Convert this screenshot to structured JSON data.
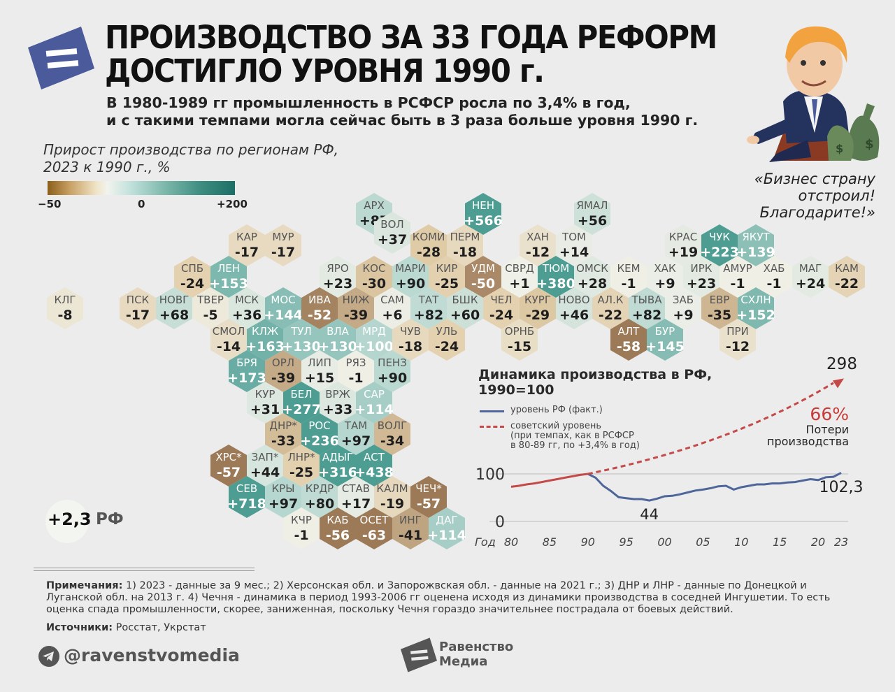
{
  "header": {
    "title_line1": "ПРОИЗВОДСТВО ЗА 33 ГОДА РЕФОРМ",
    "title_line2": "ДОСТИГЛО УРОВНЯ 1990 г.",
    "subtitle_line1": "В 1980-1989 гг промышленность в РСФСР росла по 3,4% в год,",
    "subtitle_line2": "и с такими темпами могла сейчас быть в 3 раза больше уровня 1990 г."
  },
  "quote": {
    "line1": "«Бизнес страну",
    "line2": "отстроил!",
    "line3": "Благодарите!»"
  },
  "colors": {
    "brand_blue": "#4a5a9a",
    "fact_line": "#4e6699",
    "soviet_line": "#c44949",
    "loss_red": "#c83a36",
    "neg_strong": "#9c7a58",
    "pos_strong": "#4d9d93"
  },
  "chart_data": [
    {
      "type": "heatmap",
      "title": "Прирост производства по регионам РФ, 2023 к 1990 г., %",
      "title_line1": "Прирост производства по регионам РФ,",
      "title_line2": "2023 к 1990 г., %",
      "scale": {
        "min": -50,
        "mid": 0,
        "max": 200,
        "min_label": "−50",
        "mid_label": "0",
        "max_label": "+200"
      },
      "cells": [
        {
          "label": "АРХ",
          "value": "+87",
          "row": 0,
          "col": 8.5
        },
        {
          "label": "НЕН",
          "value": "+566",
          "row": 0,
          "col": 11.5
        },
        {
          "label": "ЯМАЛ",
          "value": "+56",
          "row": 0,
          "col": 14.5
        },
        {
          "label": "ВОЛ",
          "value": "+37",
          "row": 0.6,
          "col": 9
        },
        {
          "label": "КАР",
          "value": "-17",
          "row": 1,
          "col": 5
        },
        {
          "label": "МУР",
          "value": "-17",
          "row": 1,
          "col": 6
        },
        {
          "label": "КОМИ",
          "value": "-28",
          "row": 1,
          "col": 10
        },
        {
          "label": "ПЕРМ",
          "value": "-18",
          "row": 1,
          "col": 11
        },
        {
          "label": "ХАН",
          "value": "-12",
          "row": 1,
          "col": 13
        },
        {
          "label": "ТОМ",
          "value": "+14",
          "row": 1,
          "col": 14
        },
        {
          "label": "КРАС",
          "value": "+19",
          "row": 1,
          "col": 17
        },
        {
          "label": "ЧУК",
          "value": "+223",
          "row": 1,
          "col": 18
        },
        {
          "label": "ЯКУТ",
          "value": "+139",
          "row": 1,
          "col": 19
        },
        {
          "label": "СПБ",
          "value": "-24",
          "row": 2,
          "col": 3.5
        },
        {
          "label": "ЛЕН",
          "value": "+153",
          "row": 2,
          "col": 4.5
        },
        {
          "label": "ЯРО",
          "value": "+23",
          "row": 2,
          "col": 7.5
        },
        {
          "label": "КОС",
          "value": "-30",
          "row": 2,
          "col": 8.5
        },
        {
          "label": "МАРИ",
          "value": "+90",
          "row": 2,
          "col": 9.5
        },
        {
          "label": "КИР",
          "value": "-25",
          "row": 2,
          "col": 10.5
        },
        {
          "label": "УДМ",
          "value": "-50",
          "row": 2,
          "col": 11.5
        },
        {
          "label": "СВРД",
          "value": "+1",
          "row": 2,
          "col": 12.5
        },
        {
          "label": "ТЮМ",
          "value": "+380",
          "row": 2,
          "col": 13.5
        },
        {
          "label": "ОМСК",
          "value": "+28",
          "row": 2,
          "col": 14.5
        },
        {
          "label": "КЕМ",
          "value": "-1",
          "row": 2,
          "col": 15.5
        },
        {
          "label": "ХАК",
          "value": "+9",
          "row": 2,
          "col": 16.5
        },
        {
          "label": "ИРК",
          "value": "+23",
          "row": 2,
          "col": 17.5
        },
        {
          "label": "АМУР",
          "value": "-1",
          "row": 2,
          "col": 18.5
        },
        {
          "label": "ХАБ",
          "value": "-1",
          "row": 2,
          "col": 19.5
        },
        {
          "label": "МАГ",
          "value": "+24",
          "row": 2,
          "col": 20.5
        },
        {
          "label": "КАМ",
          "value": "-22",
          "row": 2,
          "col": 21.5
        },
        {
          "label": "КЛГ",
          "value": "-8",
          "row": 3,
          "col": 0
        },
        {
          "label": "ПСК",
          "value": "-17",
          "row": 3,
          "col": 2
        },
        {
          "label": "НОВГ",
          "value": "+68",
          "row": 3,
          "col": 3
        },
        {
          "label": "ТВЕР",
          "value": "-5",
          "row": 3,
          "col": 4
        },
        {
          "label": "МСК",
          "value": "+36",
          "row": 3,
          "col": 5
        },
        {
          "label": "МОС",
          "value": "+144",
          "row": 3,
          "col": 6
        },
        {
          "label": "ИВА",
          "value": "-52",
          "row": 3,
          "col": 7
        },
        {
          "label": "НИЖ",
          "value": "-39",
          "row": 3,
          "col": 8
        },
        {
          "label": "САМ",
          "value": "+6",
          "row": 3,
          "col": 9
        },
        {
          "label": "ТАТ",
          "value": "+82",
          "row": 3,
          "col": 10
        },
        {
          "label": "БШК",
          "value": "+60",
          "row": 3,
          "col": 11
        },
        {
          "label": "ЧЕЛ",
          "value": "-24",
          "row": 3,
          "col": 12
        },
        {
          "label": "КУРГ",
          "value": "-29",
          "row": 3,
          "col": 13
        },
        {
          "label": "НОВО",
          "value": "+46",
          "row": 3,
          "col": 14
        },
        {
          "label": "АЛ.К",
          "value": "-22",
          "row": 3,
          "col": 15
        },
        {
          "label": "ТЫВА",
          "value": "+82",
          "row": 3,
          "col": 16
        },
        {
          "label": "ЗАБ",
          "value": "+9",
          "row": 3,
          "col": 17
        },
        {
          "label": "ЕВР",
          "value": "-35",
          "row": 3,
          "col": 18
        },
        {
          "label": "СХЛН",
          "value": "+152",
          "row": 3,
          "col": 19
        },
        {
          "label": "СМОЛ",
          "value": "-14",
          "row": 4,
          "col": 4.5
        },
        {
          "label": "КЛЖ",
          "value": "+163",
          "row": 4,
          "col": 5.5
        },
        {
          "label": "ТУЛ",
          "value": "+130",
          "row": 4,
          "col": 6.5
        },
        {
          "label": "ВЛА",
          "value": "+130",
          "row": 4,
          "col": 7.5
        },
        {
          "label": "МРД",
          "value": "+100",
          "row": 4,
          "col": 8.5
        },
        {
          "label": "ЧУВ",
          "value": "-18",
          "row": 4,
          "col": 9.5
        },
        {
          "label": "УЛЬ",
          "value": "-24",
          "row": 4,
          "col": 10.5
        },
        {
          "label": "ОРНБ",
          "value": "-15",
          "row": 4,
          "col": 12.5
        },
        {
          "label": "АЛТ",
          "value": "-58",
          "row": 4,
          "col": 15.5
        },
        {
          "label": "БУР",
          "value": "+145",
          "row": 4,
          "col": 16.5
        },
        {
          "label": "ПРИ",
          "value": "-12",
          "row": 4,
          "col": 18.5
        },
        {
          "label": "БРЯ",
          "value": "+173",
          "row": 5,
          "col": 5
        },
        {
          "label": "ОРЛ",
          "value": "-39",
          "row": 5,
          "col": 6
        },
        {
          "label": "ЛИП",
          "value": "+15",
          "row": 5,
          "col": 7
        },
        {
          "label": "РЯЗ",
          "value": "-1",
          "row": 5,
          "col": 8
        },
        {
          "label": "ПЕНЗ",
          "value": "+90",
          "row": 5,
          "col": 9
        },
        {
          "label": "КУР",
          "value": "+31",
          "row": 6,
          "col": 5.5
        },
        {
          "label": "БЕЛ",
          "value": "+277",
          "row": 6,
          "col": 6.5
        },
        {
          "label": "ВРЖ",
          "value": "+33",
          "row": 6,
          "col": 7.5
        },
        {
          "label": "САР",
          "value": "+114",
          "row": 6,
          "col": 8.5
        },
        {
          "label": "ДНР*",
          "value": "-33",
          "row": 7,
          "col": 6
        },
        {
          "label": "РОС",
          "value": "+236",
          "row": 7,
          "col": 7
        },
        {
          "label": "ТАМ",
          "value": "+97",
          "row": 7,
          "col": 8
        },
        {
          "label": "ВОЛГ",
          "value": "-34",
          "row": 7,
          "col": 9
        },
        {
          "label": "ХРС*",
          "value": "-57",
          "row": 8,
          "col": 4.5
        },
        {
          "label": "ЗАП*",
          "value": "+44",
          "row": 8,
          "col": 5.5
        },
        {
          "label": "ЛНР*",
          "value": "-25",
          "row": 8,
          "col": 6.5
        },
        {
          "label": "АДЫГ",
          "value": "+316",
          "row": 8,
          "col": 7.5
        },
        {
          "label": "АСТ",
          "value": "+438",
          "row": 8,
          "col": 8.5
        },
        {
          "label": "СЕВ",
          "value": "+718",
          "row": 9,
          "col": 5
        },
        {
          "label": "КРЫ",
          "value": "+97",
          "row": 9,
          "col": 6
        },
        {
          "label": "КРДР",
          "value": "+80",
          "row": 9,
          "col": 7
        },
        {
          "label": "СТАВ",
          "value": "+17",
          "row": 9,
          "col": 8
        },
        {
          "label": "КАЛМ",
          "value": "-19",
          "row": 9,
          "col": 9
        },
        {
          "label": "ЧЕЧ*",
          "value": "-57",
          "row": 9,
          "col": 10
        },
        {
          "label": "КЧР",
          "value": "-1",
          "row": 10,
          "col": 6.5
        },
        {
          "label": "КАБ",
          "value": "-56",
          "row": 10,
          "col": 7.5
        },
        {
          "label": "ОСЕТ",
          "value": "-63",
          "row": 10,
          "col": 8.5
        },
        {
          "label": "ИНГ",
          "value": "-41",
          "row": 10,
          "col": 9.5
        },
        {
          "label": "ДАГ",
          "value": "+114",
          "row": 10,
          "col": 10.5
        }
      ]
    },
    {
      "type": "line",
      "title_line1": "Динамика производства в РФ,",
      "title_line2": "1990=100",
      "xlabel": "Год",
      "x_ticks": [
        1980,
        1985,
        1990,
        1995,
        2000,
        2005,
        2010,
        2015,
        2020,
        2023
      ],
      "x_tick_labels": [
        "80",
        "85",
        "90",
        "95",
        "00",
        "05",
        "10",
        "15",
        "20",
        "23"
      ],
      "y_ticks": [
        0,
        100
      ],
      "y_tick_labels": [
        "0",
        "100"
      ],
      "xlim": [
        1980,
        2023
      ],
      "ylim": [
        0,
        300
      ],
      "series": [
        {
          "name": "уровень РФ (факт.)",
          "style": "solid",
          "x": [
            1980,
            1981,
            1982,
            1983,
            1984,
            1985,
            1986,
            1987,
            1988,
            1989,
            1990,
            1991,
            1992,
            1993,
            1994,
            1995,
            1996,
            1997,
            1998,
            1999,
            2000,
            2001,
            2002,
            2003,
            2004,
            2005,
            2006,
            2007,
            2008,
            2009,
            2010,
            2011,
            2012,
            2013,
            2014,
            2015,
            2016,
            2017,
            2018,
            2019,
            2020,
            2021,
            2022,
            2023
          ],
          "y": [
            73,
            75,
            78,
            80,
            83,
            86,
            89,
            92,
            95,
            98,
            100,
            92,
            75,
            64,
            51,
            49,
            47,
            47,
            44,
            48,
            53,
            54,
            57,
            61,
            65,
            67,
            70,
            74,
            75,
            67,
            72,
            75,
            78,
            78,
            80,
            80,
            82,
            83,
            86,
            89,
            87,
            93,
            94,
            102.3
          ]
        },
        {
          "name": "советский уровень",
          "name_line2": "(при темпах, как в РСФСР",
          "name_line3": "в 80-89 гг, по +3,4% в год)",
          "style": "dashed",
          "x": [
            1990,
            1995,
            2000,
            2005,
            2010,
            2015,
            2020,
            2023
          ],
          "y": [
            100,
            118,
            140,
            165,
            195,
            231,
            272,
            298
          ]
        }
      ],
      "annotations": {
        "end_soviet": "298",
        "end_fact": "102,3",
        "min_fact": "44",
        "loss_pct": "66%",
        "loss_line1": "Потери",
        "loss_line2": "производства"
      }
    }
  ],
  "total": {
    "value": "+2,3",
    "label": "РФ"
  },
  "notes": {
    "label": "Примечания:",
    "text": " 1) 2023 - данные за 9 мес.; 2) Херсонская обл. и Запорожвская обл. - данные на 2021 г.; 3) ДНР и ЛНР - данные по Донецкой и Луганской обл. на 2013 г. 4) Чечня - динамика в период 1993-2006 гг оценена исходя из динамики производства в соседней Ингушетии. То есть оценка спада промышленности, скорее, заниженная, поскольку Чечня гораздо значительнее пострадала от боевых действий.",
    "sources_label": "Источники:",
    "sources_text": " Росстат, Укрстат"
  },
  "footer": {
    "handle": "@ravenstvomedia",
    "brand_line1": "Равенство",
    "brand_line2": "Медиа",
    "telegram_icon": "telegram-icon"
  }
}
